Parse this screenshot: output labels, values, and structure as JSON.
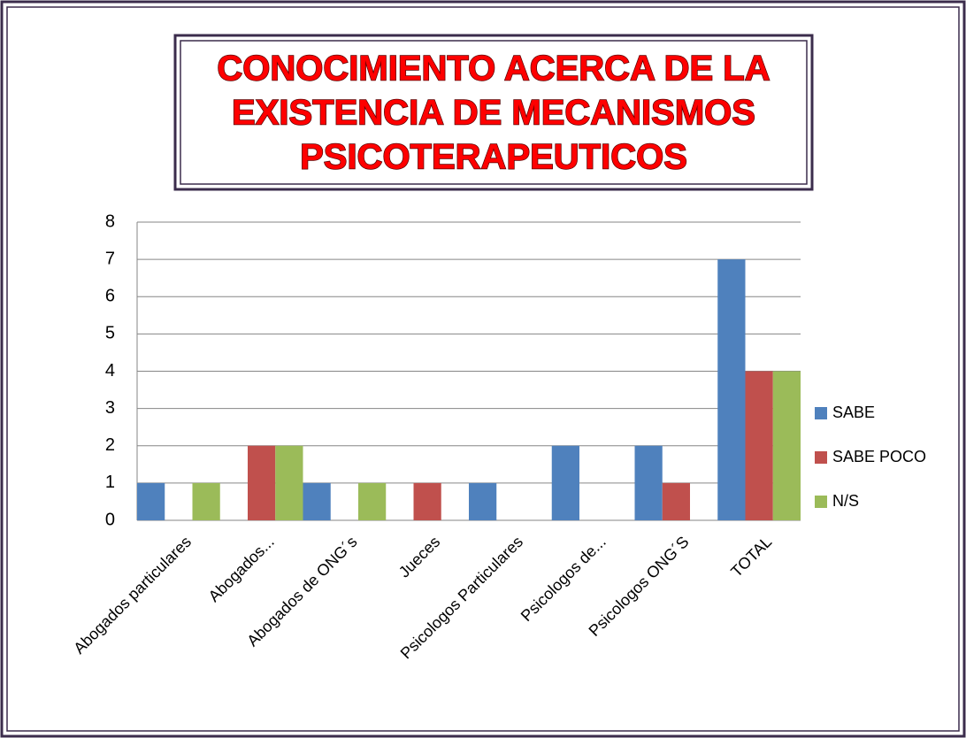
{
  "chart_data": {
    "type": "bar",
    "title": [
      "CONOCIMIENTO ACERCA DE LA",
      "EXISTENCIA DE MECANISMOS",
      "PSICOTERAPEUTICOS"
    ],
    "categories": [
      "Abogados particulares",
      "Abogados...",
      "Abogados de ONG´s",
      "Jueces",
      "Psicologos Particulares",
      "Psicologos de...",
      "Psicologos ONG´S",
      "TOTAL"
    ],
    "series": [
      {
        "name": "SABE",
        "color": "#4f81bd",
        "values": [
          1,
          0,
          1,
          0,
          1,
          2,
          2,
          7
        ]
      },
      {
        "name": "SABE POCO",
        "color": "#c0504d",
        "values": [
          0,
          2,
          0,
          1,
          0,
          0,
          1,
          4
        ]
      },
      {
        "name": "N/S",
        "color": "#9bbb59",
        "values": [
          1,
          2,
          1,
          0,
          0,
          0,
          0,
          4
        ]
      }
    ],
    "ylim": [
      0,
      8
    ],
    "yticks": [
      0,
      1,
      2,
      3,
      4,
      5,
      6,
      7,
      8
    ],
    "grid": true,
    "legend": "right"
  }
}
